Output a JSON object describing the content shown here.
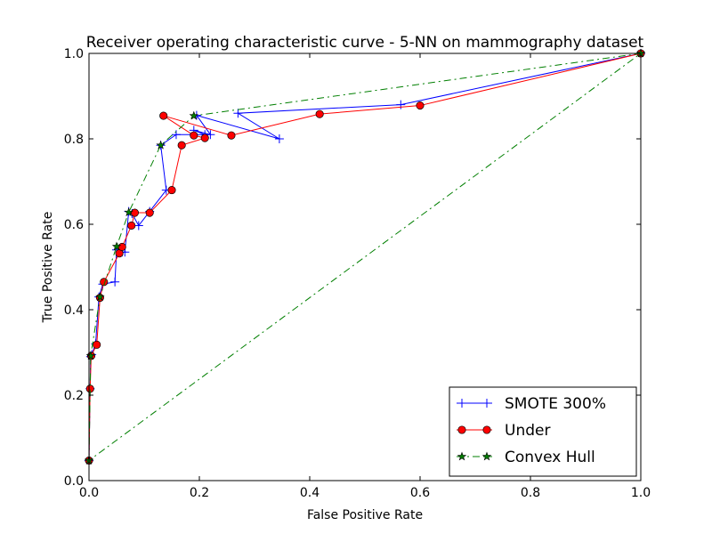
{
  "chart_data": {
    "type": "line",
    "title": "Receiver operating characteristic curve - 5-NN on mammography dataset",
    "xlabel": "False Positive Rate",
    "ylabel": "True Positive Rate",
    "xlim": [
      0,
      1
    ],
    "ylim": [
      0,
      1
    ],
    "xticks": [
      "0.0",
      "0.2",
      "0.4",
      "0.6",
      "0.8",
      "1.0"
    ],
    "yticks": [
      "0.0",
      "0.2",
      "0.4",
      "0.6",
      "0.8",
      "1.0"
    ],
    "grid": false,
    "legend_position": "bottom-right",
    "series": [
      {
        "name": "SMOTE 300%",
        "color": "#0000ff",
        "marker": "plus",
        "linestyle": "solid",
        "x": [
          0.0,
          0.002,
          0.003,
          0.005,
          0.012,
          0.018,
          0.025,
          0.047,
          0.05,
          0.06,
          0.065,
          0.072,
          0.078,
          0.09,
          0.11,
          0.14,
          0.13,
          0.158,
          0.21,
          0.19,
          0.22,
          0.195,
          0.345,
          0.27,
          0.565,
          1.0
        ],
        "y": [
          0.047,
          0.215,
          0.29,
          0.295,
          0.32,
          0.43,
          0.46,
          0.465,
          0.54,
          0.535,
          0.535,
          0.63,
          0.625,
          0.597,
          0.63,
          0.68,
          0.785,
          0.81,
          0.81,
          0.82,
          0.81,
          0.855,
          0.8,
          0.86,
          0.88,
          1.0
        ]
      },
      {
        "name": "Under",
        "color": "#ff0000",
        "marker": "circle",
        "linestyle": "solid",
        "x": [
          0.0,
          0.002,
          0.004,
          0.014,
          0.02,
          0.027,
          0.055,
          0.06,
          0.077,
          0.083,
          0.11,
          0.15,
          0.168,
          0.21,
          0.19,
          0.135,
          0.258,
          0.418,
          0.6,
          1.0
        ],
        "y": [
          0.047,
          0.215,
          0.292,
          0.318,
          0.428,
          0.465,
          0.532,
          0.547,
          0.597,
          0.627,
          0.627,
          0.68,
          0.785,
          0.802,
          0.808,
          0.854,
          0.808,
          0.858,
          0.878,
          1.0
        ]
      },
      {
        "name": "Convex Hull",
        "color": "#007f00",
        "marker": "star",
        "linestyle": "dashdot",
        "x": [
          0.0,
          0.003,
          0.02,
          0.05,
          0.072,
          0.13,
          0.19,
          1.0,
          0.0
        ],
        "y": [
          0.047,
          0.292,
          0.43,
          0.548,
          0.628,
          0.785,
          0.854,
          1.0,
          0.047
        ]
      }
    ]
  }
}
